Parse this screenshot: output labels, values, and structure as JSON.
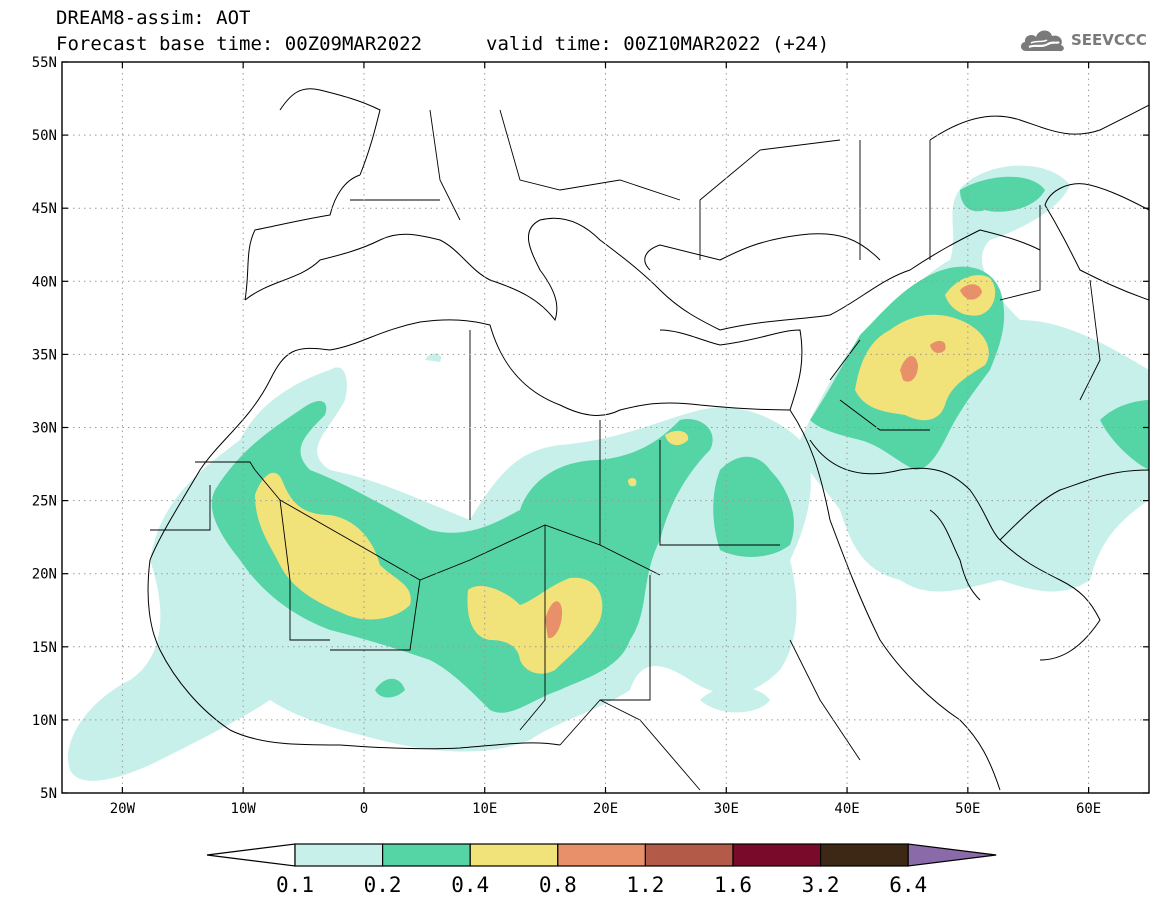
{
  "header": {
    "model_line": "DREAM8-assim: AOT",
    "base_time_line": "Forecast base time: 00Z09MAR2022",
    "valid_time_line": "valid time: 00Z10MAR2022 (+24)"
  },
  "logo": {
    "text": "SEEVCCC",
    "icon": "cloud-icon"
  },
  "map": {
    "lat_labels": [
      "55N",
      "50N",
      "45N",
      "40N",
      "35N",
      "30N",
      "25N",
      "20N",
      "15N",
      "10N",
      "5N"
    ],
    "lon_labels": [
      "20W",
      "10W",
      "0",
      "10E",
      "20E",
      "30E",
      "40E",
      "50E",
      "60E"
    ],
    "lon_range": [
      -25,
      65
    ],
    "lat_range": [
      5,
      55
    ],
    "grid": "dotted"
  },
  "colorbar": {
    "levels": [
      "0.1",
      "0.2",
      "0.4",
      "0.8",
      "1.2",
      "1.6",
      "3.2",
      "6.4"
    ],
    "colors": [
      "#c8f0ea",
      "#55d4a5",
      "#f2e27a",
      "#e8906a",
      "#b35a48",
      "#7a0a2a",
      "#3c2814",
      "#8a6aa8"
    ]
  }
}
